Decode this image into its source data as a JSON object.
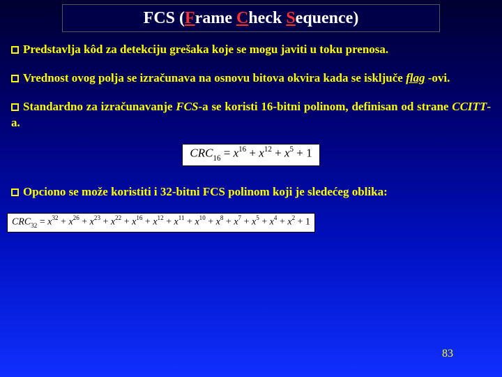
{
  "title": {
    "pre": "FCS (",
    "f": "F",
    "w1": "rame ",
    "c": "C",
    "w2": "heck ",
    "s": "S",
    "post": "equence)"
  },
  "bullets": {
    "b1": "Predstavlja kôd za detekciju grešaka koje se mogu javiti u toku prenosa.",
    "b2a": "Vrednost ovog polja se izračunava na osnovu bitova okvira kada se isključe ",
    "b2flag": "flag",
    "b2b": " -ovi.",
    "b3a": "Standardno za izračunavanje ",
    "b3fcs": "FCS",
    "b3b": "-a se koristi 16-bitni polinom, definisan od strane ",
    "b3ccitt": "CCITT",
    "b3c": "-a.",
    "b4": "Opciono se može koristiti i 32-bitni FCS polinom koji je sledećeg oblika:"
  },
  "formula16": {
    "label": "CRC",
    "subscript": "16",
    "terms": [
      {
        "base": "x",
        "exp": "16"
      },
      {
        "base": "x",
        "exp": "12"
      },
      {
        "base": "x",
        "exp": "5"
      },
      {
        "base": "1",
        "exp": ""
      }
    ]
  },
  "formula32": {
    "label": "CRC",
    "subscript": "32",
    "terms": [
      {
        "base": "x",
        "exp": "32"
      },
      {
        "base": "x",
        "exp": "26"
      },
      {
        "base": "x",
        "exp": "23"
      },
      {
        "base": "x",
        "exp": "22"
      },
      {
        "base": "x",
        "exp": "16"
      },
      {
        "base": "x",
        "exp": "12"
      },
      {
        "base": "x",
        "exp": "11"
      },
      {
        "base": "x",
        "exp": "10"
      },
      {
        "base": "x",
        "exp": "8"
      },
      {
        "base": "x",
        "exp": "7"
      },
      {
        "base": "x",
        "exp": "5"
      },
      {
        "base": "x",
        "exp": "4"
      },
      {
        "base": "x",
        "exp": "2"
      },
      {
        "base": "1",
        "exp": ""
      }
    ]
  },
  "page": "83",
  "colors": {
    "text": "#ffff00",
    "bg_top": "#000030",
    "bg_bottom": "#1030ff",
    "title_bg": "#000048",
    "accent_red": "#ff3030",
    "formula_bg": "#ffffff"
  }
}
